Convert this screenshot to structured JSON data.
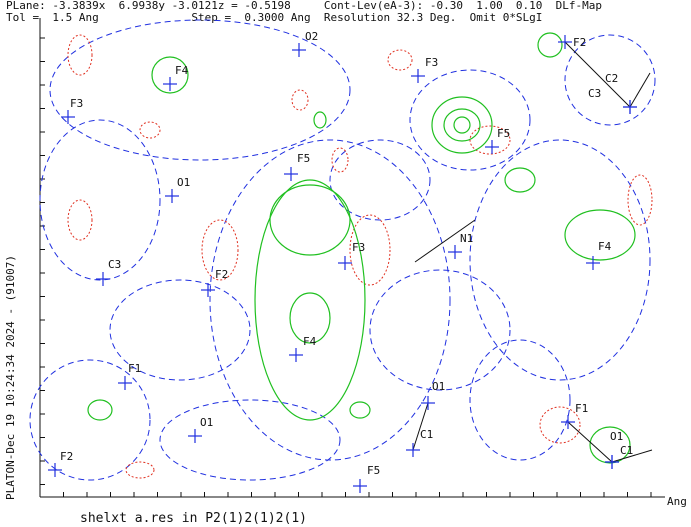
{
  "header": {
    "line1": "PLane: -3.3839x  6.9938y -3.0121z = -0.5198     Cont-Lev(eA-3): -0.30  1.00  0.10  DLf-Map",
    "line2": "Tol =  1.5 Ang              Step =  0.3000 Ang  Resolution 32.3 Deg.  Omit 0*SLgI"
  },
  "side_label": "PLATON-Dec 19 10:24:34 2024  - (91007)",
  "footer": "shelxt a.res in P2(1)2(1)2(1)",
  "axis_unit": "Ang",
  "atoms": [
    {
      "label": "O2"
    },
    {
      "label": "F4"
    },
    {
      "label": "F3"
    },
    {
      "label": "F3"
    },
    {
      "label": "F2"
    },
    {
      "label": "C2"
    },
    {
      "label": "C3"
    },
    {
      "label": "F5"
    },
    {
      "label": "F5"
    },
    {
      "label": "O1"
    },
    {
      "label": "F3"
    },
    {
      "label": "N1"
    },
    {
      "label": "F4"
    },
    {
      "label": "C3"
    },
    {
      "label": "F2"
    },
    {
      "label": "F4"
    },
    {
      "label": "F1"
    },
    {
      "label": "O1"
    },
    {
      "label": "F1"
    },
    {
      "label": "C1"
    },
    {
      "label": "O1"
    },
    {
      "label": "C1"
    },
    {
      "label": "O1"
    },
    {
      "label": "F2"
    },
    {
      "label": "F5"
    }
  ]
}
